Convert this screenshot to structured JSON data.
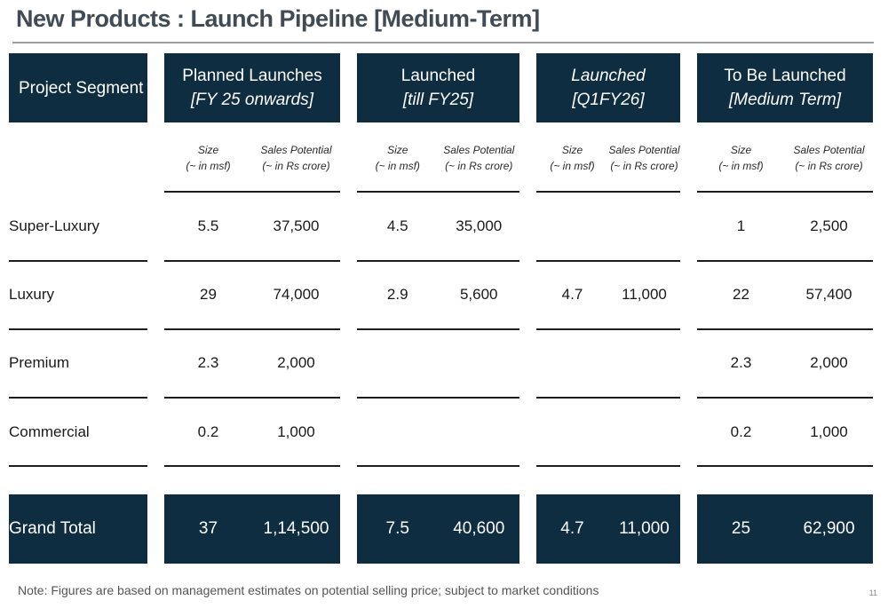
{
  "title": "New Products : Launch Pipeline [Medium-Term]",
  "header": {
    "segment": "Project Segment",
    "groups": [
      {
        "line1": "Planned Launches",
        "line2": "[FY 25 onwards]",
        "line1_italic": false
      },
      {
        "line1": "Launched",
        "line2": "[till FY25]",
        "line1_italic": false
      },
      {
        "line1": "Launched",
        "line2": "[Q1FY26]",
        "line1_italic": true
      },
      {
        "line1": "To Be Launched",
        "line2": "[Medium Term]",
        "line1_italic": false
      }
    ]
  },
  "subheader": {
    "size_line1": "Size",
    "size_line2": "(~ in msf)",
    "sales_line1": "Sales Potential",
    "sales_line2": "(~ in Rs crore)"
  },
  "rows": [
    {
      "segment": "Super-Luxury",
      "values": [
        "5.5",
        "37,500",
        "4.5",
        "35,000",
        "",
        "",
        "1",
        "2,500"
      ]
    },
    {
      "segment": "Luxury",
      "values": [
        "29",
        "74,000",
        "2.9",
        "5,600",
        "4.7",
        "11,000",
        "22",
        "57,400"
      ]
    },
    {
      "segment": "Premium",
      "values": [
        "2.3",
        "2,000",
        "",
        "",
        "",
        "",
        "2.3",
        "2,000"
      ]
    },
    {
      "segment": "Commercial",
      "values": [
        "0.2",
        "1,000",
        "",
        "",
        "",
        "",
        "0.2",
        "1,000"
      ]
    }
  ],
  "total": {
    "segment": "Grand Total",
    "values": [
      "37",
      "1,14,500",
      "7.5",
      "40,600",
      "4.7",
      "11,000",
      "25",
      "62,900"
    ]
  },
  "note": "Note: Figures are based on management estimates on potential selling price; subject to market conditions",
  "page_number": "11",
  "colors": {
    "header_bg": "#0e2d40",
    "header_text": "#ffffff",
    "title": "#404b55"
  }
}
